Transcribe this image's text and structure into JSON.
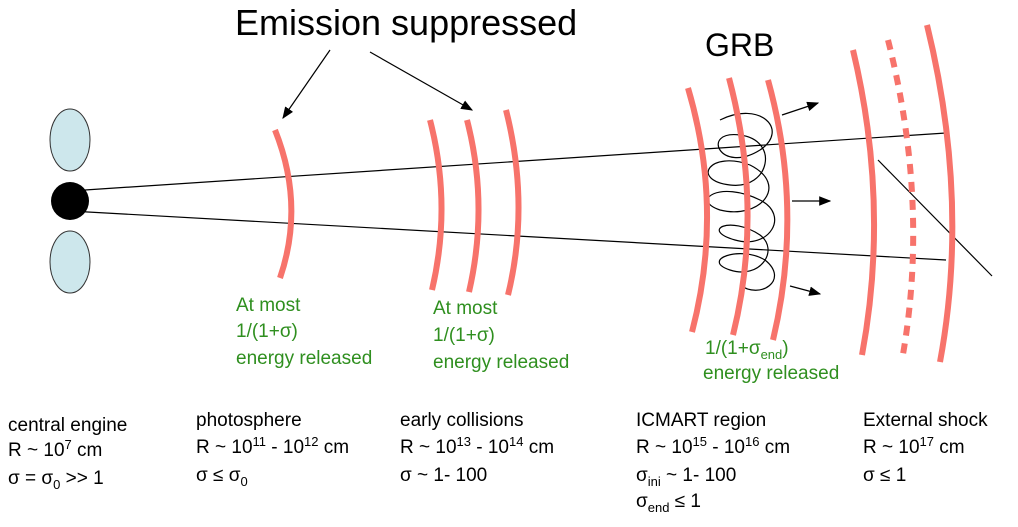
{
  "title": "Emission suppressed",
  "grb": "GRB",
  "notes": [
    {
      "line1": "At most",
      "line2": "1/(1+σ)",
      "line3": "energy released"
    },
    {
      "line1": "At most",
      "line2": "1/(1+σ)",
      "line3": "energy released"
    },
    {
      "line1": [
        "1/(1+σ",
        "end",
        ")"
      ],
      "line2": "energy released"
    }
  ],
  "regions": [
    {
      "name": "central engine",
      "radius": [
        "R ~ 10",
        "7",
        " cm"
      ],
      "sigma": [
        "σ = σ",
        "0",
        " >> 1"
      ]
    },
    {
      "name": "photosphere",
      "radius": [
        "R ~ 10",
        "11",
        " - 10",
        "12",
        " cm"
      ],
      "sigma": [
        "σ ≤ σ",
        "0"
      ]
    },
    {
      "name": "early collisions",
      "radius": [
        "R ~ 10",
        "13",
        " - 10",
        "14",
        " cm"
      ],
      "sigma": [
        "σ ~ 1- 100"
      ]
    },
    {
      "name": "ICMART region",
      "radius": [
        "R ~ 10",
        "15",
        " - 10",
        "16",
        " cm"
      ],
      "sigma": [
        "σ",
        "ini",
        " ~ 1- 100"
      ],
      "sigma2": [
        "σ",
        "end",
        " ≤ 1"
      ]
    },
    {
      "name": "External shock",
      "radius": [
        "R ~ 10",
        "17",
        " cm"
      ],
      "sigma": [
        "σ ≤ 1"
      ]
    }
  ]
}
